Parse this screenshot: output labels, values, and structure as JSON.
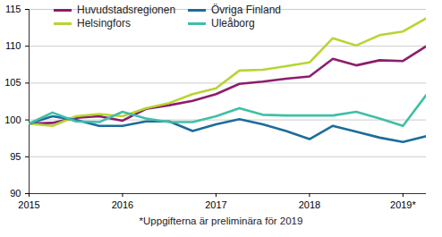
{
  "chart_data": {
    "type": "line",
    "caption": "*Uppgifterna är preliminära för 2019",
    "x": [
      2015,
      2015.25,
      2015.5,
      2015.75,
      2016,
      2016.25,
      2016.5,
      2016.75,
      2017,
      2017.25,
      2017.5,
      2017.75,
      2018,
      2018.25,
      2018.5,
      2018.75,
      2019,
      2019.25
    ],
    "series": [
      {
        "name": "Huvudstadsregionen",
        "color": "#8c1d6e",
        "values": [
          99.5,
          99.6,
          100.3,
          100.5,
          99.9,
          101.5,
          102.0,
          102.6,
          103.5,
          104.9,
          105.2,
          105.6,
          105.9,
          108.3,
          107.4,
          108.1,
          108.0,
          110.0
        ]
      },
      {
        "name": "Helsingfors",
        "color": "#b8d432",
        "values": [
          99.5,
          99.2,
          100.5,
          100.8,
          100.5,
          101.6,
          102.3,
          103.5,
          104.3,
          106.7,
          106.8,
          107.3,
          107.8,
          111.1,
          110.1,
          111.5,
          112.0,
          113.8
        ]
      },
      {
        "name": "Övriga Finland",
        "color": "#1c6c9c",
        "values": [
          99.5,
          100.5,
          100.0,
          99.2,
          99.2,
          99.8,
          99.8,
          98.5,
          99.4,
          100.1,
          99.4,
          98.5,
          97.4,
          99.2,
          98.4,
          97.6,
          97.0,
          97.8
        ]
      },
      {
        "name": "Uleåborg",
        "color": "#3fbfa6",
        "values": [
          99.5,
          101.0,
          99.8,
          99.7,
          101.1,
          100.2,
          99.7,
          99.7,
          100.5,
          101.6,
          100.7,
          100.6,
          100.6,
          100.6,
          101.1,
          100.2,
          99.2,
          103.4
        ]
      }
    ],
    "xlim": [
      2015,
      2019.25
    ],
    "xticks": [
      2015,
      2016,
      2017,
      2018,
      {
        "value": 2019,
        "label": "2019*"
      }
    ],
    "ylim": [
      90,
      115
    ],
    "yticks": [
      90,
      95,
      100,
      105,
      110,
      115
    ],
    "grid": true,
    "legend": "top-left"
  }
}
